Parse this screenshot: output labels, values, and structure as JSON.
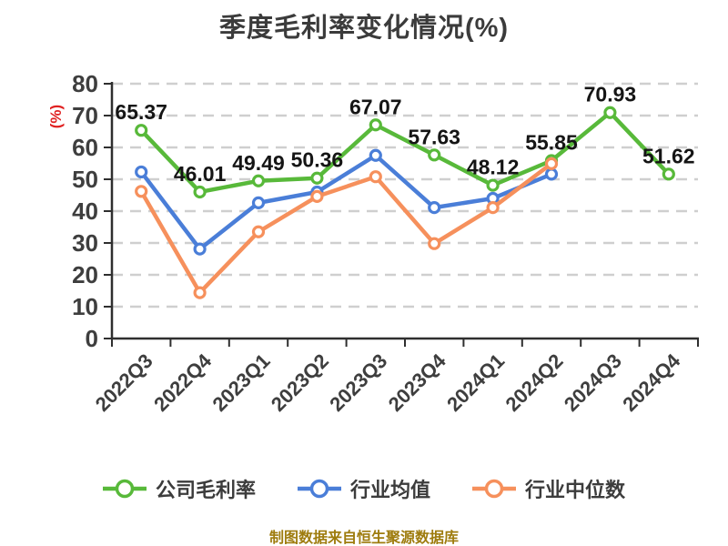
{
  "footer": {
    "source_note": "制图数据来自恒生聚源数据库"
  },
  "chart_data": {
    "type": "line",
    "title": "季度毛利率变化情况(%)",
    "ylabel": "(%)",
    "xlabel": "",
    "categories": [
      "2022Q3",
      "2022Q4",
      "2023Q1",
      "2023Q2",
      "2023Q3",
      "2023Q4",
      "2024Q1",
      "2024Q2",
      "2024Q3",
      "2024Q4"
    ],
    "ylim": [
      0,
      80
    ],
    "yticks": [
      0,
      10,
      20,
      30,
      40,
      50,
      60,
      70,
      80
    ],
    "grid": "horizontal-dashed",
    "legend_position": "bottom",
    "series": [
      {
        "name": "公司毛利率",
        "color": "#58b93a",
        "values": [
          65.37,
          46.01,
          49.49,
          50.36,
          67.07,
          57.63,
          48.12,
          55.85,
          70.93,
          51.62
        ],
        "point_labels": [
          "65.37",
          "46.01",
          "49.49",
          "50.36",
          "67.07",
          "57.63",
          "48.12",
          "55.85",
          "70.93",
          "51.62"
        ]
      },
      {
        "name": "行业均值",
        "color": "#4a7ed8",
        "values": [
          52.3,
          28.1,
          42.6,
          46.0,
          57.5,
          41.1,
          44.0,
          51.6,
          null,
          null
        ],
        "point_labels": null
      },
      {
        "name": "行业中位数",
        "color": "#f6905c",
        "values": [
          46.2,
          14.4,
          33.5,
          44.6,
          50.8,
          29.8,
          41.1,
          54.9,
          null,
          null
        ],
        "point_labels": null
      }
    ],
    "style": {
      "axis_color": "#2f2f2f",
      "grid_color": "#cfcfcf",
      "tick_label_color": "#3e3e3e",
      "data_label_color": "#151515",
      "title_color": "#3b3b3b",
      "ylabel_color": "#e02222",
      "footer_color": "#9e7c0e",
      "marker_fill": "#ffffff"
    }
  }
}
